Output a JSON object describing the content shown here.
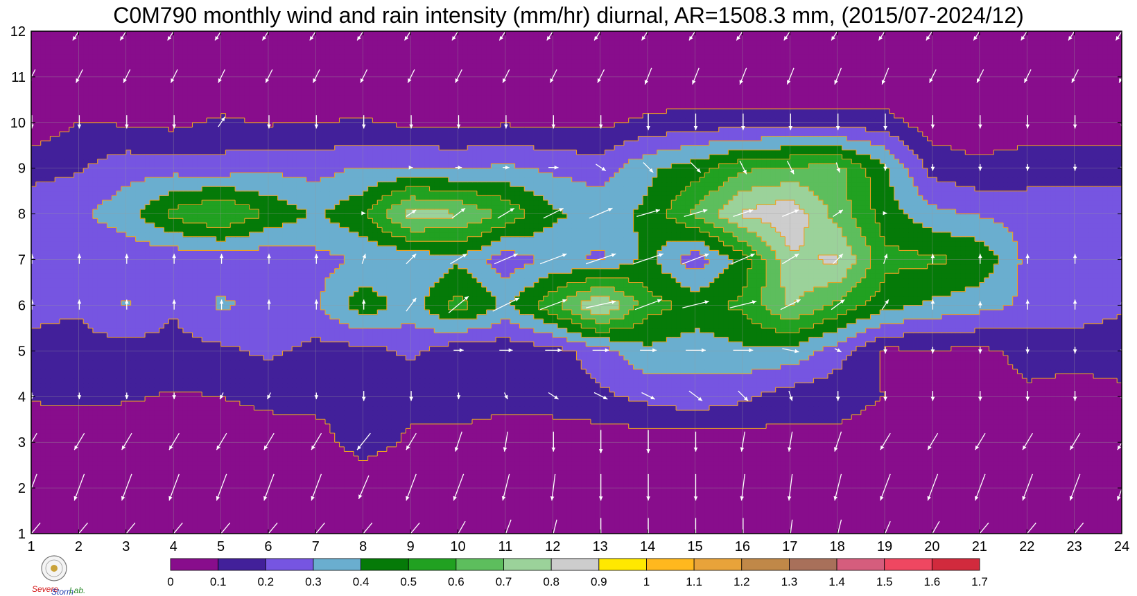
{
  "title": "C0M790 monthly wind and rain intensity (mm/hr) diurnal, AR=1508.3 mm, (2015/07-2024/12)",
  "logo": {
    "text_a": "Severe",
    "text_b": "Storm",
    "text_c": "Lab."
  },
  "chart_data": {
    "type": "heatmap",
    "title": "C0M790 monthly wind and rain intensity (mm/hr) diurnal, AR=1508.3 mm, (2015/07-2024/12)",
    "xlabel": "",
    "ylabel": "",
    "xlim": [
      1,
      24
    ],
    "ylim": [
      1,
      12
    ],
    "x_ticks": [
      1,
      2,
      3,
      4,
      5,
      6,
      7,
      8,
      9,
      10,
      11,
      12,
      13,
      14,
      15,
      16,
      17,
      18,
      19,
      20,
      21,
      22,
      23,
      24
    ],
    "y_ticks": [
      1,
      2,
      3,
      4,
      5,
      6,
      7,
      8,
      9,
      10,
      11,
      12
    ],
    "grid": true,
    "colorbar": {
      "levels": [
        0,
        0.1,
        0.2,
        0.3,
        0.4,
        0.5,
        0.6,
        0.7,
        0.8,
        0.9,
        1,
        1.1,
        1.2,
        1.3,
        1.4,
        1.5,
        1.6,
        1.7
      ],
      "tick_labels": [
        "0",
        "0.1",
        "0.2",
        "0.3",
        "0.4",
        "0.5",
        "0.6",
        "0.7",
        "0.8",
        "0.9",
        "1",
        "1.1",
        "1.2",
        "1.3",
        "1.4",
        "1.5",
        "1.6",
        "1.7"
      ],
      "colors": [
        "#880d8c",
        "#42209a",
        "#7655e1",
        "#6aaecf",
        "#057a08",
        "#21a121",
        "#5dbe5d",
        "#9bd29a",
        "#cdcdcd",
        "#ffe800",
        "#ffb81e",
        "#e8a33a",
        "#c08848",
        "#a8705a",
        "#d55d7d",
        "#ef4761",
        "#d12a3d"
      ]
    },
    "rain_grid": [
      [
        0.0,
        0.0,
        0.0,
        0.0,
        0.0,
        0.0,
        0.0,
        0.0,
        0.0,
        0.0,
        0.0,
        0.0,
        0.0,
        0.0,
        0.0,
        0.0,
        0.0,
        0.0,
        0.0,
        0.0,
        0.0,
        0.0,
        0.0,
        0.0
      ],
      [
        0.0,
        0.0,
        0.0,
        0.0,
        0.0,
        0.0,
        0.0,
        0.0,
        0.0,
        0.0,
        0.0,
        0.0,
        0.0,
        0.0,
        0.0,
        0.0,
        0.0,
        0.0,
        0.0,
        0.0,
        0.0,
        0.0,
        0.0,
        0.0
      ],
      [
        0.03,
        0.04,
        0.04,
        0.06,
        0.06,
        0.06,
        0.05,
        0.16,
        0.08,
        0.06,
        0.05,
        0.05,
        0.04,
        0.04,
        0.03,
        0.05,
        0.06,
        0.08,
        0.06,
        0.05,
        0.05,
        0.08,
        0.06,
        0.05
      ],
      [
        0.11,
        0.12,
        0.11,
        0.09,
        0.1,
        0.12,
        0.14,
        0.14,
        0.13,
        0.16,
        0.13,
        0.14,
        0.18,
        0.23,
        0.27,
        0.22,
        0.15,
        0.13,
        0.1,
        0.08,
        0.08,
        0.09,
        0.08,
        0.09
      ],
      [
        0.18,
        0.17,
        0.16,
        0.17,
        0.18,
        0.22,
        0.17,
        0.16,
        0.22,
        0.13,
        0.13,
        0.16,
        0.25,
        0.38,
        0.33,
        0.38,
        0.37,
        0.25,
        0.08,
        0.09,
        0.08,
        0.12,
        0.12,
        0.12
      ],
      [
        0.22,
        0.21,
        0.31,
        0.21,
        0.32,
        0.26,
        0.28,
        0.47,
        0.35,
        0.55,
        0.38,
        0.57,
        0.83,
        0.54,
        0.48,
        0.52,
        0.71,
        0.58,
        0.44,
        0.38,
        0.34,
        0.28,
        0.28,
        0.22
      ],
      [
        0.23,
        0.22,
        0.22,
        0.22,
        0.23,
        0.23,
        0.27,
        0.31,
        0.31,
        0.38,
        0.24,
        0.33,
        0.28,
        0.43,
        0.23,
        0.44,
        0.78,
        0.82,
        0.53,
        0.52,
        0.48,
        0.27,
        0.25,
        0.21
      ],
      [
        0.27,
        0.28,
        0.36,
        0.53,
        0.62,
        0.48,
        0.39,
        0.48,
        0.76,
        0.71,
        0.58,
        0.42,
        0.36,
        0.42,
        0.62,
        0.82,
        0.88,
        0.66,
        0.45,
        0.33,
        0.29,
        0.26,
        0.29,
        0.25
      ],
      [
        0.16,
        0.19,
        0.26,
        0.26,
        0.24,
        0.28,
        0.26,
        0.31,
        0.31,
        0.29,
        0.32,
        0.28,
        0.25,
        0.38,
        0.45,
        0.58,
        0.62,
        0.63,
        0.42,
        0.16,
        0.12,
        0.15,
        0.15,
        0.16
      ],
      [
        0.03,
        0.1,
        0.09,
        0.07,
        0.12,
        0.09,
        0.1,
        0.11,
        0.08,
        0.08,
        0.09,
        0.08,
        0.08,
        0.12,
        0.15,
        0.14,
        0.14,
        0.15,
        0.14,
        0.05,
        0.04,
        0.05,
        0.04,
        0.05
      ],
      [
        0.0,
        0.0,
        0.0,
        0.0,
        0.0,
        0.0,
        0.0,
        0.0,
        0.0,
        0.0,
        0.0,
        0.0,
        0.0,
        0.0,
        0.0,
        0.0,
        0.0,
        0.0,
        0.0,
        0.0,
        0.0,
        0.0,
        0.0,
        0.0
      ],
      [
        0.0,
        0.0,
        0.11,
        0.0,
        0.0,
        0.0,
        0.0,
        0.0,
        0.0,
        0.0,
        0.0,
        0.0,
        0.0,
        0.0,
        0.0,
        0.0,
        0.0,
        0.0,
        0.0,
        0.0,
        0.0,
        0.0,
        0.0,
        0.0
      ]
    ],
    "wind_u_grid": [
      [
        -0.5,
        -0.5,
        -0.5,
        -0.5,
        -0.5,
        -0.5,
        -0.5,
        -0.5,
        -0.5,
        -0.4,
        -0.3,
        -0.2,
        0.0,
        0.0,
        0.0,
        0.0,
        -0.1,
        -0.2,
        -0.3,
        -0.4,
        -0.5,
        -0.5,
        -0.5,
        -0.5
      ],
      [
        -0.3,
        -0.3,
        -0.3,
        -0.3,
        -0.3,
        -0.3,
        -0.3,
        -0.3,
        -0.3,
        -0.3,
        -0.2,
        -0.1,
        0.0,
        0.0,
        0.0,
        -0.1,
        -0.1,
        -0.2,
        -0.3,
        -0.3,
        -0.3,
        -0.3,
        -0.3,
        -0.3
      ],
      [
        -0.3,
        -0.3,
        -0.3,
        -0.3,
        -0.3,
        -0.3,
        -0.3,
        -0.4,
        -0.3,
        -0.2,
        -0.1,
        0.0,
        0.0,
        0.0,
        0.0,
        -0.1,
        -0.1,
        -0.2,
        -0.3,
        -0.3,
        -0.3,
        -0.3,
        -0.3,
        -0.3
      ],
      [
        0.0,
        0.0,
        0.0,
        0.0,
        -0.1,
        -0.1,
        0.0,
        0.0,
        0.0,
        0.0,
        0.1,
        0.3,
        0.4,
        0.4,
        0.4,
        0.3,
        0.1,
        0.0,
        0.0,
        0.0,
        0.0,
        0.0,
        0.0,
        0.0
      ],
      [
        0.0,
        0.0,
        0.0,
        0.0,
        0.0,
        0.0,
        0.0,
        0.0,
        0.0,
        0.3,
        0.4,
        0.5,
        0.5,
        0.5,
        0.6,
        0.6,
        0.5,
        0.2,
        0.0,
        0.0,
        0.0,
        0.0,
        0.0,
        0.0
      ],
      [
        0.0,
        0.0,
        0.0,
        0.0,
        0.0,
        0.0,
        0.0,
        0.0,
        0.3,
        0.6,
        0.8,
        0.8,
        0.9,
        0.8,
        0.8,
        0.8,
        0.6,
        0.4,
        0.2,
        0.0,
        0.0,
        0.0,
        0.0,
        0.0
      ],
      [
        0.0,
        0.0,
        0.0,
        0.0,
        0.0,
        0.0,
        0.0,
        0.1,
        0.3,
        0.5,
        0.7,
        0.8,
        0.9,
        0.9,
        0.8,
        0.7,
        0.5,
        0.3,
        0.1,
        0.0,
        0.0,
        0.0,
        0.0,
        0.0
      ],
      [
        0.0,
        0.0,
        0.0,
        0.0,
        0.0,
        0.0,
        0.0,
        0.1,
        0.3,
        0.4,
        0.5,
        0.6,
        0.7,
        0.7,
        0.7,
        0.6,
        0.5,
        0.3,
        0.1,
        0.0,
        0.0,
        0.0,
        0.0,
        0.0
      ],
      [
        0.0,
        0.0,
        0.0,
        0.0,
        0.0,
        0.0,
        0.0,
        0.0,
        0.1,
        0.2,
        0.2,
        0.3,
        0.3,
        0.3,
        0.3,
        0.2,
        0.2,
        0.1,
        0.0,
        0.0,
        0.0,
        0.0,
        0.0,
        0.0
      ],
      [
        0.0,
        0.0,
        0.0,
        0.0,
        0.2,
        0.0,
        0.0,
        0.0,
        0.0,
        0.0,
        0.0,
        0.0,
        0.0,
        0.0,
        0.0,
        0.0,
        0.0,
        0.0,
        0.0,
        0.0,
        0.0,
        0.0,
        0.0,
        0.0
      ],
      [
        -0.2,
        -0.2,
        -0.2,
        -0.2,
        -0.2,
        -0.2,
        -0.2,
        -0.2,
        -0.2,
        -0.2,
        -0.2,
        -0.2,
        -0.2,
        -0.2,
        -0.2,
        -0.2,
        -0.2,
        -0.2,
        -0.2,
        -0.2,
        -0.2,
        -0.2,
        -0.2,
        -0.2
      ],
      [
        -0.4,
        -0.4,
        -0.4,
        -0.4,
        -0.4,
        -0.4,
        -0.4,
        -0.4,
        -0.4,
        -0.4,
        -0.4,
        -0.4,
        -0.4,
        -0.4,
        -0.4,
        -0.4,
        -0.4,
        -0.4,
        -0.4,
        -0.4,
        -0.4,
        -0.4,
        -0.4,
        -0.4
      ]
    ],
    "wind_v_grid": [
      [
        -0.6,
        -0.6,
        -0.6,
        -0.6,
        -0.6,
        -0.6,
        -0.6,
        -0.6,
        -0.6,
        -0.7,
        -0.8,
        -0.8,
        -0.9,
        -0.9,
        -0.9,
        -0.9,
        -0.8,
        -0.8,
        -0.7,
        -0.7,
        -0.6,
        -0.6,
        -0.6,
        -0.6
      ],
      [
        -0.8,
        -0.8,
        -0.8,
        -0.8,
        -0.8,
        -0.8,
        -0.8,
        -0.7,
        -0.8,
        -0.8,
        -0.8,
        -0.8,
        -0.8,
        -0.8,
        -0.8,
        -0.8,
        -0.8,
        -0.8,
        -0.8,
        -0.8,
        -0.8,
        -0.8,
        -0.8,
        -0.8
      ],
      [
        -0.5,
        -0.5,
        -0.5,
        -0.5,
        -0.5,
        -0.5,
        -0.5,
        -0.5,
        -0.5,
        -0.6,
        -0.6,
        -0.6,
        -0.7,
        -0.7,
        -0.6,
        -0.6,
        -0.6,
        -0.6,
        -0.5,
        -0.5,
        -0.5,
        -0.5,
        -0.5,
        -0.5
      ],
      [
        -0.2,
        -0.2,
        -0.2,
        -0.2,
        -0.2,
        -0.2,
        -0.2,
        -0.3,
        -0.3,
        -0.2,
        -0.2,
        -0.2,
        -0.2,
        -0.2,
        -0.3,
        -0.3,
        -0.3,
        -0.3,
        -0.3,
        -0.3,
        -0.3,
        -0.3,
        -0.3,
        -0.3
      ],
      [
        0.0,
        0.0,
        0.0,
        0.0,
        0.0,
        0.0,
        0.0,
        0.0,
        0.0,
        0.0,
        0.0,
        0.0,
        0.0,
        0.0,
        0.0,
        0.0,
        -0.1,
        -0.1,
        -0.2,
        -0.2,
        -0.2,
        -0.2,
        -0.2,
        -0.2
      ],
      [
        0.3,
        0.3,
        0.3,
        0.3,
        0.3,
        0.3,
        0.3,
        0.3,
        0.4,
        0.5,
        0.4,
        0.3,
        0.2,
        0.3,
        0.2,
        0.2,
        0.3,
        0.3,
        0.3,
        0.3,
        0.2,
        0.3,
        0.3,
        0.3
      ],
      [
        0.3,
        0.3,
        0.3,
        0.3,
        0.3,
        0.3,
        0.3,
        0.3,
        0.3,
        0.3,
        0.3,
        0.3,
        0.3,
        0.3,
        0.3,
        0.3,
        0.3,
        0.3,
        0.3,
        0.3,
        0.3,
        0.3,
        0.3,
        0.3
      ],
      [
        0.0,
        0.0,
        0.0,
        0.0,
        0.0,
        0.0,
        0.0,
        0.0,
        0.2,
        0.3,
        0.3,
        0.3,
        0.3,
        0.2,
        0.2,
        0.2,
        0.2,
        0.2,
        0.0,
        0.0,
        0.0,
        0.0,
        0.0,
        0.0
      ],
      [
        0.0,
        0.0,
        0.0,
        0.0,
        0.0,
        0.0,
        0.0,
        0.0,
        0.0,
        0.0,
        0.0,
        0.0,
        -0.2,
        -0.3,
        -0.3,
        -0.4,
        -0.4,
        -0.3,
        -0.2,
        -0.2,
        -0.2,
        -0.2,
        -0.2,
        -0.2
      ],
      [
        -0.4,
        -0.4,
        -0.4,
        -0.4,
        0.3,
        -0.4,
        -0.4,
        -0.4,
        -0.4,
        -0.4,
        -0.4,
        -0.4,
        -0.4,
        -0.5,
        -0.5,
        -0.5,
        -0.5,
        -0.5,
        -0.5,
        -0.4,
        -0.4,
        -0.4,
        -0.4,
        -0.4
      ],
      [
        -0.4,
        -0.4,
        -0.4,
        -0.4,
        -0.4,
        -0.4,
        -0.4,
        -0.4,
        -0.4,
        -0.4,
        -0.4,
        -0.4,
        -0.4,
        -0.5,
        -0.5,
        -0.5,
        -0.5,
        -0.5,
        -0.5,
        -0.4,
        -0.4,
        -0.4,
        -0.4,
        -0.4
      ],
      [
        -0.6,
        -0.6,
        -0.6,
        -0.6,
        -0.6,
        -0.6,
        -0.6,
        -0.6,
        -0.6,
        -0.6,
        -0.6,
        -0.6,
        -0.6,
        -0.6,
        -0.6,
        -0.6,
        -0.6,
        -0.6,
        -0.6,
        -0.6,
        -0.6,
        -0.6,
        -0.6,
        -0.6
      ]
    ]
  }
}
